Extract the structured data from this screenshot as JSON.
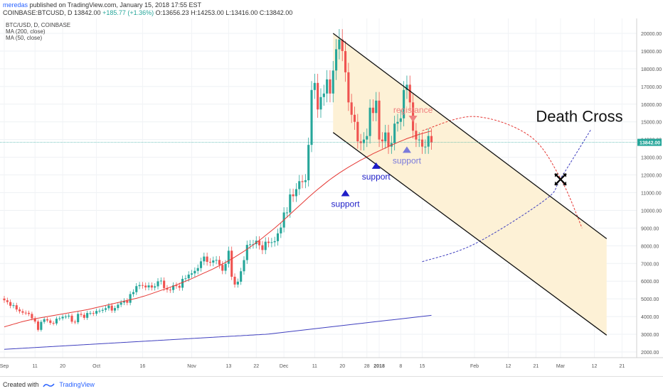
{
  "header": {
    "author": "meredas",
    "published": " published on TradingView.com, January 15, 2018 17:55 EST",
    "ohlc_prefix": "COINBASE:BTCUSD, D  13842.00  ",
    "change": "+185.77 (+1.36%)",
    "ohlc_rest": "  O:13656.23  H:14253.00  L:13416.00  C:13842.00"
  },
  "legend": {
    "title": "BTC/USD, D, COINBASE",
    "ma200": "MA (200, close)",
    "ma50": "MA (50, close)"
  },
  "footer": {
    "created_with": "Created with",
    "brand": "TradingView"
  },
  "colors": {
    "up": "#26a69a",
    "down": "#ef5350",
    "ma50": "#e53935",
    "ma200": "#3f3fbf",
    "channel_fill": "#fdf1d6",
    "support_dark": "#1e1ec8",
    "support_light": "#7b7bdb",
    "resistance": "#f08080",
    "price_label_bg": "#26a69a"
  },
  "chart_data": {
    "type": "candlestick",
    "title": "BTC/USD, D, COINBASE",
    "ylim": [
      1000,
      21000
    ],
    "y_ticks": [
      2000,
      3000,
      4000,
      5000,
      6000,
      7000,
      8000,
      9000,
      10000,
      11000,
      12000,
      13000,
      14000,
      15000,
      16000,
      17000,
      18000,
      19000,
      20000
    ],
    "y_tick_labels": [
      "2000.00",
      "3000.00",
      "4000.00",
      "5000.00",
      "6000.00",
      "7000.00",
      "8000.00",
      "9000.00",
      "10000.00",
      "11000.00",
      "12000.00",
      "13000.00",
      "14000.00",
      "15000.00",
      "16000.00",
      "17000.00",
      "18000.00",
      "19000.00",
      "20000.00"
    ],
    "x_ticks": [
      {
        "date": "2017-09-01",
        "label": "Sep"
      },
      {
        "date": "2017-09-11",
        "label": "11"
      },
      {
        "date": "2017-09-20",
        "label": "20"
      },
      {
        "date": "2017-10-01",
        "label": "Oct"
      },
      {
        "date": "2017-10-16",
        "label": "16"
      },
      {
        "date": "2017-11-01",
        "label": "Nov"
      },
      {
        "date": "2017-11-13",
        "label": "13"
      },
      {
        "date": "2017-11-22",
        "label": "22"
      },
      {
        "date": "2017-12-01",
        "label": "Dec"
      },
      {
        "date": "2017-12-11",
        "label": "11"
      },
      {
        "date": "2017-12-20",
        "label": "20"
      },
      {
        "date": "2017-12-28",
        "label": "28"
      },
      {
        "date": "2018-01-01",
        "label": "2018"
      },
      {
        "date": "2018-01-08",
        "label": "8"
      },
      {
        "date": "2018-01-15",
        "label": "15"
      },
      {
        "date": "2018-02-01",
        "label": "Feb"
      },
      {
        "date": "2018-02-12",
        "label": "12"
      },
      {
        "date": "2018-02-21",
        "label": "21"
      },
      {
        "date": "2018-03-01",
        "label": "Mar"
      },
      {
        "date": "2018-03-12",
        "label": "12"
      },
      {
        "date": "2018-03-21",
        "label": "21"
      }
    ],
    "last_price": 13842,
    "last_price_label": "13842.00",
    "closes": [
      4920,
      4820,
      4610,
      4640,
      4400,
      4300,
      4220,
      4210,
      4150,
      3900,
      3720,
      3250,
      3700,
      3850,
      3780,
      3640,
      3610,
      3880,
      3900,
      3990,
      4000,
      4050,
      3710,
      3680,
      4150,
      4100,
      3930,
      4200,
      4200,
      4160,
      4320,
      4330,
      4380,
      4470,
      4620,
      4340,
      4480,
      4670,
      4790,
      4890,
      4780,
      5270,
      5380,
      5720,
      5780,
      5750,
      5650,
      5760,
      5640,
      5710,
      5990,
      6030,
      5610,
      5520,
      5500,
      5760,
      5740,
      5630,
      6130,
      6160,
      6370,
      6440,
      6580,
      6740,
      7120,
      7390,
      7090,
      7050,
      7170,
      7200,
      6920,
      6590,
      6980,
      7720,
      6250,
      5810,
      5970,
      6560,
      7190,
      8050,
      8080,
      8090,
      8290,
      8030,
      7760,
      8230,
      8160,
      8200,
      8260,
      8700,
      9030,
      9880,
      9880,
      10900,
      10800,
      11200,
      11650,
      11600,
      11700,
      13700,
      16800,
      17200,
      15700,
      16400,
      16600,
      17400,
      16600,
      17900,
      19100,
      19650,
      19000,
      17800,
      16100,
      15400,
      15000,
      13900,
      13800,
      14000,
      14200,
      15800,
      15500,
      16200,
      14000,
      13900,
      14400,
      13600,
      13800,
      14900,
      15000,
      15200,
      16800,
      17100,
      16100,
      14500,
      14000,
      14000,
      13600,
      13600,
      14200,
      13842
    ],
    "ma50": [
      3420,
      3470,
      3520,
      3570,
      3620,
      3670,
      3720,
      3760,
      3800,
      3840,
      3880,
      3910,
      3940,
      3970,
      4000,
      4030,
      4060,
      4090,
      4120,
      4150,
      4180,
      4210,
      4240,
      4270,
      4300,
      4330,
      4360,
      4390,
      4430,
      4470,
      4510,
      4550,
      4590,
      4630,
      4670,
      4710,
      4750,
      4790,
      4830,
      4870,
      4910,
      4950,
      4990,
      5030,
      5080,
      5130,
      5180,
      5240,
      5300,
      5360,
      5420,
      5480,
      5540,
      5600,
      5660,
      5720,
      5790,
      5860,
      5930,
      6000,
      6070,
      6140,
      6220,
      6300,
      6380,
      6460,
      6540,
      6620,
      6700,
      6790,
      6880,
      6970,
      7060,
      7160,
      7260,
      7360,
      7470,
      7580,
      7690,
      7810,
      7930,
      8050,
      8180,
      8310,
      8440,
      8580,
      8720,
      8860,
      9000,
      9150,
      9300,
      9460,
      9620,
      9780,
      9940,
      10100,
      10260,
      10420,
      10580,
      10740,
      10890,
      11040,
      11190,
      11330,
      11470,
      11610,
      11740,
      11870,
      11990,
      12110,
      12220,
      12330,
      12440,
      12540,
      12640,
      12740,
      12840,
      12930,
      13020,
      13110,
      13200,
      13280,
      13360,
      13440,
      13520,
      13600,
      13680,
      13760,
      13840,
      13910,
      13980,
      14050,
      14110,
      14170,
      14230,
      14290,
      14340,
      14390,
      14440,
      14480
    ],
    "ma200": [
      2150,
      2160,
      2170,
      2180,
      2190,
      2200,
      2210,
      2220,
      2230,
      2240,
      2250,
      2260,
      2270,
      2280,
      2290,
      2300,
      2310,
      2320,
      2330,
      2340,
      2350,
      2360,
      2370,
      2380,
      2390,
      2400,
      2410,
      2420,
      2430,
      2440,
      2450,
      2460,
      2470,
      2480,
      2490,
      2500,
      2510,
      2520,
      2530,
      2540,
      2550,
      2560,
      2570,
      2580,
      2590,
      2600,
      2610,
      2620,
      2630,
      2640,
      2650,
      2660,
      2670,
      2680,
      2690,
      2700,
      2710,
      2720,
      2730,
      2740,
      2750,
      2760,
      2770,
      2780,
      2790,
      2800,
      2810,
      2820,
      2830,
      2840,
      2850,
      2860,
      2870,
      2880,
      2890,
      2900,
      2910,
      2920,
      2930,
      2940,
      2950,
      2960,
      2970,
      2980,
      2990,
      3000,
      3010,
      3030,
      3050,
      3070,
      3090,
      3110,
      3130,
      3150,
      3170,
      3190,
      3210,
      3230,
      3250,
      3270,
      3290,
      3310,
      3330,
      3350,
      3370,
      3390,
      3410,
      3430,
      3450,
      3470,
      3490,
      3510,
      3530,
      3550,
      3570,
      3590,
      3610,
      3630,
      3650,
      3670,
      3690,
      3710,
      3730,
      3750,
      3770,
      3790,
      3810,
      3830,
      3850,
      3870,
      3890,
      3910,
      3930,
      3950,
      3970,
      3990,
      4010,
      4030,
      4050,
      4070
    ],
    "channel": {
      "upper_line": [
        {
          "date": "2017-12-17",
          "price": 20000
        },
        {
          "date": "2018-03-16",
          "price": 8400
        }
      ],
      "lower_line": [
        {
          "date": "2017-12-17",
          "price": 14400
        },
        {
          "date": "2018-03-16",
          "price": 2950
        }
      ]
    },
    "projections": {
      "ma50_projection": [
        {
          "date": "2018-01-15",
          "price": 14500
        },
        {
          "date": "2018-02-01",
          "price": 15300
        },
        {
          "date": "2018-02-19",
          "price": 14200
        },
        {
          "date": "2018-03-01",
          "price": 11800
        },
        {
          "date": "2018-03-08",
          "price": 9000
        }
      ],
      "ma200_projection": [
        {
          "date": "2018-01-15",
          "price": 7100
        },
        {
          "date": "2018-02-01",
          "price": 8100
        },
        {
          "date": "2018-02-24",
          "price": 10600
        },
        {
          "date": "2018-03-01",
          "price": 11800
        },
        {
          "date": "2018-03-11",
          "price": 14600
        }
      ]
    },
    "annotations": [
      {
        "type": "support",
        "date": "2017-12-21",
        "price": 11000,
        "label": "support",
        "color": "#1e1ec8"
      },
      {
        "type": "support",
        "date": "2017-12-31",
        "price": 12550,
        "label": "support",
        "color": "#1e1ec8"
      },
      {
        "type": "support",
        "date": "2018-01-10",
        "price": 13450,
        "label": "support",
        "color": "#7b7bdb"
      },
      {
        "type": "resistance",
        "date": "2018-01-12",
        "price": 15150,
        "label": "registance",
        "color": "#f08080"
      },
      {
        "type": "text",
        "date": "2018-02-21",
        "price": 15000,
        "label": "Death Cross"
      },
      {
        "type": "cross",
        "date": "2018-03-01",
        "price": 11750
      }
    ]
  }
}
